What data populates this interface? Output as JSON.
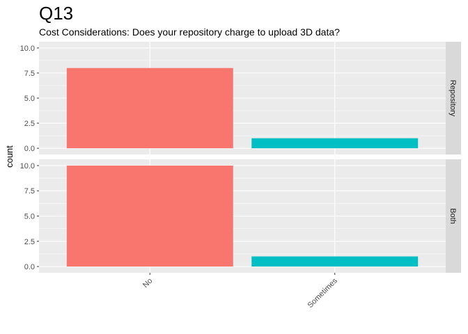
{
  "chart_data": {
    "type": "bar",
    "title": "Q13",
    "subtitle": "Cost Considerations: Does your repository charge to upload 3D data?",
    "xlabel": "",
    "ylabel": "count",
    "categories": [
      "No",
      "Sometimes"
    ],
    "colors": {
      "No": "#F8766D",
      "Sometimes": "#00BFC4"
    },
    "ylim": [
      0,
      10
    ],
    "yticks": [
      "0.0",
      "2.5",
      "5.0",
      "7.5",
      "10.0"
    ],
    "facets": [
      {
        "label": "Repository",
        "values": [
          8,
          1
        ]
      },
      {
        "label": "Both",
        "values": [
          10,
          1
        ]
      }
    ],
    "grid": true,
    "legend": "none"
  }
}
